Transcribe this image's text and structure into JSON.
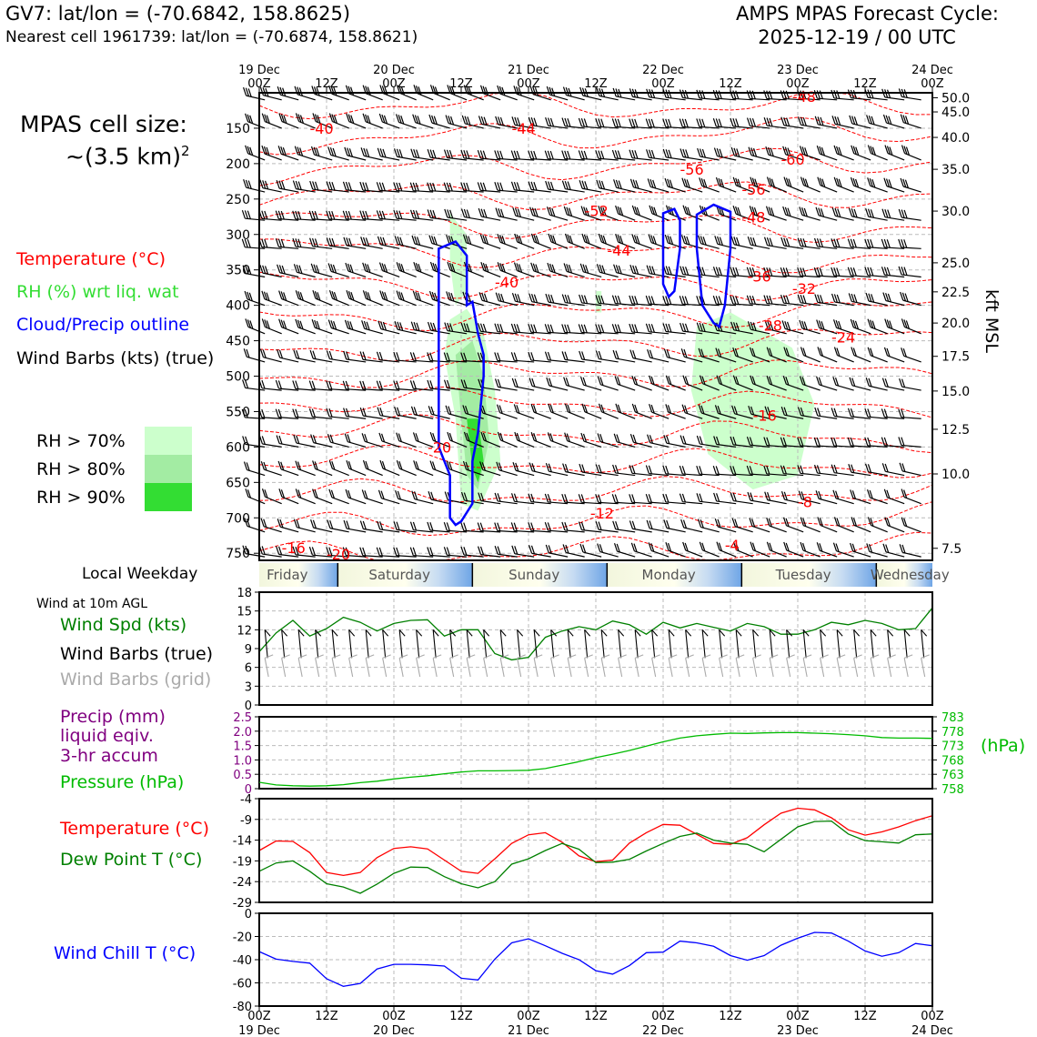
{
  "header": {
    "station_line": "GV7: lat/lon = (-70.6842, 158.8625)",
    "cell_line": "Nearest cell 1961739: lat/lon = (-70.6874, 158.8621)",
    "cycle_title": "AMPS MPAS Forecast Cycle:",
    "cycle_date": "2025-12-19 / 00 UTC"
  },
  "cell_size": {
    "line1": "MPAS cell size:",
    "line2": "~(3.5 km)",
    "sup": "2"
  },
  "profile_legend": {
    "temperature": "Temperature (°C)",
    "rh": "RH (%) wrt liq. wat",
    "cloud": "Cloud/Precip outline",
    "wind": "Wind Barbs (kts) (true)"
  },
  "rh_legend": [
    {
      "label": "RH > 70%",
      "color": "#ccffcc"
    },
    {
      "label": "RH > 80%",
      "color": "#a3eca3"
    },
    {
      "label": "RH > 90%",
      "color": "#33dd33"
    }
  ],
  "colors": {
    "temperature": "#ff0000",
    "rh_label": "#33cc33",
    "cloud": "#0000ff",
    "wind_speed": "#008000",
    "grid_barb": "#aaaaaa",
    "precip": "#800080",
    "pressure": "#00bb00",
    "dewpoint": "#008000",
    "windchill": "#0000ff"
  },
  "weekday": {
    "label": "Local Weekday",
    "days": [
      "Friday",
      "Saturday",
      "Sunday",
      "Monday",
      "Tuesday",
      "Wednesday"
    ]
  },
  "surface_legend": {
    "wind_10m": "Wind at 10m AGL",
    "wind_spd": "Wind Spd (kts)",
    "barbs_true": "Wind Barbs (true)",
    "barbs_grid": "Wind Barbs (grid)",
    "precip_1": "Precip (mm)",
    "precip_2": "liquid eqiv.",
    "precip_3": "3-hr accum",
    "pressure": "Pressure (hPa)",
    "temp": "Temperature (°C)",
    "dewpoint": "Dew Point T (°C)",
    "windchill": "Wind Chill T (°C)",
    "hpa_unit": "(hPa)",
    "kft_label": "kft MSL"
  },
  "chart_data": [
    {
      "type": "line",
      "title": "vertical profile",
      "x_top_labels": [
        [
          "19 Dec",
          "00Z"
        ],
        [
          "",
          "12Z"
        ],
        [
          "20 Dec",
          "00Z"
        ],
        [
          "",
          "12Z"
        ],
        [
          "21 Dec",
          "00Z"
        ],
        [
          "",
          "12Z"
        ],
        [
          "22 Dec",
          "00Z"
        ],
        [
          "",
          "12Z"
        ],
        [
          "23 Dec",
          "00Z"
        ],
        [
          "",
          "12Z"
        ],
        [
          "24 Dec",
          "00Z"
        ]
      ],
      "pressure_ticks": [
        150,
        200,
        250,
        300,
        350,
        400,
        450,
        500,
        550,
        600,
        650,
        700,
        750
      ],
      "ylim": [
        100,
        760
      ],
      "kft_ticks": [
        {
          "label": "50.0",
          "p": 107
        },
        {
          "label": "45.0",
          "p": 127
        },
        {
          "label": "40.0",
          "p": 163
        },
        {
          "label": "35.0",
          "p": 208
        },
        {
          "label": "30.0",
          "p": 267
        },
        {
          "label": "25.0",
          "p": 340
        },
        {
          "label": "22.5",
          "p": 381
        },
        {
          "label": "20.0",
          "p": 425
        },
        {
          "label": "17.5",
          "p": 472
        },
        {
          "label": "15.0",
          "p": 521
        },
        {
          "label": "12.5",
          "p": 575
        },
        {
          "label": "10.0",
          "p": 638
        },
        {
          "label": "7.5",
          "p": 743
        }
      ],
      "temperature_contour_labels": [
        {
          "text": "-40",
          "x": 9,
          "p": 150
        },
        {
          "text": "-44",
          "x": 45,
          "p": 150
        },
        {
          "text": "-56",
          "x": 75,
          "p": 208
        },
        {
          "text": "-60",
          "x": 93,
          "p": 194
        },
        {
          "text": "-52",
          "x": 58,
          "p": 266
        },
        {
          "text": "-56",
          "x": 86,
          "p": 236
        },
        {
          "text": "-48",
          "x": 86,
          "p": 275
        },
        {
          "text": "-44",
          "x": 62,
          "p": 322
        },
        {
          "text": "-40",
          "x": 42,
          "p": 367
        },
        {
          "text": "-36",
          "x": 87,
          "p": 359
        },
        {
          "text": "-32",
          "x": 95,
          "p": 376
        },
        {
          "text": "-28",
          "x": 89,
          "p": 428
        },
        {
          "text": "-24",
          "x": 102,
          "p": 445
        },
        {
          "text": "-20",
          "x": 30,
          "p": 600
        },
        {
          "text": "-16",
          "x": 88,
          "p": 555
        },
        {
          "text": "-12",
          "x": 59,
          "p": 693
        },
        {
          "text": "-8",
          "x": 96,
          "p": 677
        },
        {
          "text": "-4",
          "x": 83,
          "p": 738
        },
        {
          "text": "-16",
          "x": 4,
          "p": 742
        },
        {
          "text": "-20",
          "x": 12,
          "p": 751
        },
        {
          "text": "-48",
          "x": 95,
          "p": 105
        }
      ],
      "cloud_outline": [
        [
          [
            32,
            320
          ],
          [
            35,
            310
          ],
          [
            37,
            330
          ],
          [
            37,
            400
          ],
          [
            38,
            395
          ],
          [
            39,
            440
          ],
          [
            40,
            470
          ],
          [
            40,
            500
          ],
          [
            39,
            580
          ],
          [
            38,
            620
          ],
          [
            38,
            680
          ],
          [
            36,
            705
          ],
          [
            35,
            710
          ],
          [
            34,
            700
          ],
          [
            34,
            640
          ],
          [
            32,
            600
          ],
          [
            32,
            560
          ],
          [
            32,
            420
          ],
          [
            32,
            320
          ]
        ],
        [
          [
            72,
            270
          ],
          [
            74,
            264
          ],
          [
            75,
            280
          ],
          [
            75,
            320
          ],
          [
            74,
            380
          ],
          [
            73,
            388
          ],
          [
            72,
            370
          ],
          [
            72,
            320
          ],
          [
            72,
            270
          ]
        ],
        [
          [
            78,
            272
          ],
          [
            81,
            258
          ],
          [
            84,
            268
          ],
          [
            84,
            320
          ],
          [
            83,
            400
          ],
          [
            82,
            430
          ],
          [
            81,
            425
          ],
          [
            79,
            400
          ],
          [
            78,
            320
          ],
          [
            78,
            272
          ]
        ]
      ]
    },
    {
      "type": "line",
      "title": "Wind Spd (kts)",
      "x": [
        0,
        3,
        6,
        9,
        12,
        15,
        18,
        21,
        24,
        27,
        30,
        33,
        36,
        39,
        42,
        45,
        48,
        51,
        54,
        57,
        60,
        63,
        66,
        69,
        72,
        75,
        78,
        81,
        84,
        87,
        90,
        93,
        96,
        99,
        102,
        105,
        108,
        111,
        114,
        117,
        120
      ],
      "values": [
        8.5,
        11.5,
        13.5,
        11,
        12.2,
        14,
        13.2,
        11.8,
        13,
        13.5,
        13.6,
        11,
        12,
        12,
        8.2,
        7.2,
        7.6,
        10.8,
        11.8,
        12.5,
        12,
        13.4,
        12.8,
        11.3,
        13.2,
        12.3,
        13,
        12.4,
        11.8,
        13,
        12.5,
        11.3,
        11.3,
        12,
        13.2,
        12.8,
        13.5,
        13,
        12,
        12.2,
        15.5
      ],
      "ylim": [
        0,
        18
      ],
      "yticks": [
        0,
        3,
        6,
        9,
        12,
        15,
        18
      ]
    },
    {
      "type": "line",
      "title": "Pressure (hPa)",
      "x": [
        0,
        3,
        6,
        9,
        12,
        15,
        18,
        21,
        24,
        27,
        30,
        33,
        36,
        39,
        42,
        45,
        48,
        51,
        54,
        57,
        60,
        63,
        66,
        69,
        72,
        75,
        78,
        81,
        84,
        87,
        90,
        93,
        96,
        99,
        102,
        105,
        108,
        111,
        114,
        117,
        120
      ],
      "values": [
        760.2,
        759.3,
        759.0,
        758.9,
        759.0,
        759.4,
        760.1,
        760.6,
        761.4,
        762.0,
        762.5,
        763.2,
        763.8,
        764.2,
        764.2,
        764.3,
        764.4,
        765.0,
        766.2,
        767.4,
        768.8,
        770.0,
        771.3,
        772.8,
        774.3,
        775.6,
        776.4,
        776.9,
        777.3,
        777.2,
        777.4,
        777.5,
        777.5,
        777.3,
        777.1,
        776.8,
        776.4,
        775.8,
        775.6,
        775.6,
        775.5
      ],
      "precip_values": [
        0,
        0,
        0,
        0,
        0,
        0,
        0,
        0,
        0,
        0,
        0,
        0,
        0,
        0,
        0,
        0,
        0,
        0,
        0,
        0,
        0,
        0,
        0,
        0,
        0,
        0,
        0,
        0,
        0,
        0,
        0,
        0,
        0,
        0,
        0,
        0,
        0,
        0,
        0,
        0,
        0
      ],
      "precip_ylim": [
        0,
        2.5
      ],
      "precip_ticks": [
        "0",
        "0.5",
        "1.0",
        "1.5",
        "2.0",
        "2.5"
      ],
      "pressure_ylim": [
        758,
        783
      ],
      "pressure_ticks": [
        "758",
        "763",
        "768",
        "773",
        "778",
        "783"
      ]
    },
    {
      "type": "line",
      "title": "Temperature (°C)",
      "x": [
        0,
        3,
        6,
        9,
        12,
        15,
        18,
        21,
        24,
        27,
        30,
        33,
        36,
        39,
        42,
        45,
        48,
        51,
        54,
        57,
        60,
        63,
        66,
        69,
        72,
        75,
        78,
        81,
        84,
        87,
        90,
        93,
        96,
        99,
        102,
        105,
        108,
        111,
        114,
        117,
        120
      ],
      "series": [
        {
          "name": "Temperature (°C)",
          "values": [
            -16.5,
            -14.2,
            -14.3,
            -17,
            -21.8,
            -22.5,
            -21.8,
            -18.2,
            -16,
            -15.6,
            -16.1,
            -18.8,
            -21.5,
            -22,
            -18.5,
            -14.8,
            -12.7,
            -12.2,
            -14.5,
            -17.8,
            -19.2,
            -18.8,
            -14.7,
            -12.2,
            -10.2,
            -10.4,
            -12.6,
            -14.8,
            -15,
            -13.4,
            -10.3,
            -7.5,
            -6.3,
            -6.7,
            -8.6,
            -11.5,
            -12.8,
            -12,
            -10.8,
            -9.3,
            -8.1
          ]
        },
        {
          "name": "Dew Point T (°C)",
          "values": [
            -21.5,
            -19.5,
            -19,
            -21.5,
            -24.5,
            -25.3,
            -26.8,
            -24.6,
            -22,
            -20.5,
            -20.6,
            -22.8,
            -24.5,
            -25.5,
            -24,
            -19.8,
            -18.5,
            -16.5,
            -14.8,
            -16.2,
            -19.4,
            -19.3,
            -18.6,
            -16.6,
            -14.8,
            -13.1,
            -12.3,
            -14,
            -14.7,
            -15,
            -16.8,
            -13.8,
            -10.8,
            -9.5,
            -9.4,
            -12.5,
            -14.1,
            -14.4,
            -14.7,
            -12.7,
            -12.5
          ]
        }
      ],
      "ylim": [
        -29,
        -4
      ],
      "yticks": [
        -4,
        -9,
        -14,
        -19,
        -24,
        -29
      ]
    },
    {
      "type": "line",
      "title": "Wind Chill T (°C)",
      "x": [
        0,
        3,
        6,
        9,
        12,
        15,
        18,
        21,
        24,
        27,
        30,
        33,
        36,
        39,
        42,
        45,
        48,
        51,
        54,
        57,
        60,
        63,
        66,
        69,
        72,
        75,
        78,
        81,
        84,
        87,
        90,
        93,
        96,
        99,
        102,
        105,
        108,
        111,
        114,
        117,
        120
      ],
      "values": [
        -33,
        -39.5,
        -41.5,
        -43,
        -56.5,
        -63,
        -60.5,
        -48,
        -44,
        -44,
        -44.5,
        -45.5,
        -56,
        -57.5,
        -39.5,
        -25.5,
        -22,
        -28,
        -34.5,
        -40,
        -49.5,
        -52.5,
        -45,
        -34,
        -33.5,
        -24,
        -25.5,
        -28.5,
        -36.5,
        -40.5,
        -36.5,
        -27.5,
        -21.5,
        -16.5,
        -17,
        -24,
        -32.5,
        -37,
        -34,
        -26,
        -28
      ],
      "ylim": [
        -80,
        0
      ],
      "yticks": [
        0,
        -20,
        -40,
        -60,
        -80
      ],
      "x_bottom_labels": [
        [
          "00Z",
          "19 Dec"
        ],
        [
          "12Z",
          ""
        ],
        [
          "00Z",
          "20 Dec"
        ],
        [
          "12Z",
          ""
        ],
        [
          "00Z",
          "21 Dec"
        ],
        [
          "12Z",
          ""
        ],
        [
          "00Z",
          "22 Dec"
        ],
        [
          "12Z",
          ""
        ],
        [
          "00Z",
          "23 Dec"
        ],
        [
          "12Z",
          ""
        ],
        [
          "00Z",
          "24 Dec"
        ]
      ]
    }
  ]
}
